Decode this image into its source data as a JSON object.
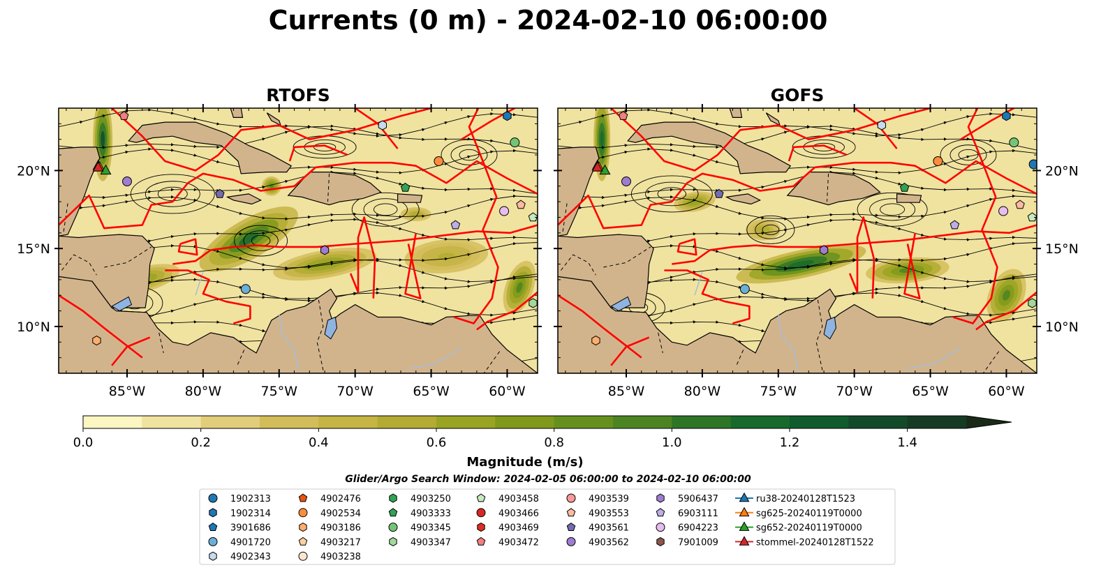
{
  "chart_data": {
    "type": "heatmap",
    "title": "Currents (0 m) - 2024-02-10 06:00:00",
    "panels": [
      {
        "name": "RTOFS"
      },
      {
        "name": "GOFS"
      }
    ],
    "x_axis": {
      "range": [
        -89.5,
        -58.0
      ],
      "ticks": [
        -85,
        -80,
        -75,
        -70,
        -65,
        -60
      ],
      "tick_labels": [
        "85°W",
        "80°W",
        "75°W",
        "70°W",
        "65°W",
        "60°W"
      ]
    },
    "y_axis": {
      "range": [
        7.0,
        24.0
      ],
      "ticks": [
        10,
        15,
        20
      ],
      "tick_labels": [
        "10°N",
        "15°N",
        "20°N"
      ]
    },
    "colorbar": {
      "label": "Magnitude (m/s)",
      "range": [
        0.0,
        1.5
      ],
      "extend": "max",
      "ticks": [
        0.0,
        0.2,
        0.4,
        0.6,
        0.8,
        1.0,
        1.2,
        1.4
      ],
      "tick_labels": [
        "0.0",
        "0.2",
        "0.4",
        "0.6",
        "0.8",
        "1.0",
        "1.2",
        "1.4"
      ],
      "colors": [
        "#fbf6c2",
        "#f0e3a0",
        "#e2cd7a",
        "#d3bd5a",
        "#c6b445",
        "#b3ab33",
        "#9aa423",
        "#80991a",
        "#66901d",
        "#4d8422",
        "#2f7528",
        "#176a2c",
        "#105c2d",
        "#134b2a",
        "#163b24",
        "#1a2a18"
      ]
    },
    "search_window": "Glider/Argo Search Window: 2024-02-05 06:00:00 to 2024-02-10 06:00:00",
    "land_color": "#d2b48c",
    "track_color": "#ff0000",
    "argo_floats": [
      {
        "id": "1902313",
        "marker": "circle",
        "color": "#1f77b4",
        "rtofs": [
          -60.0,
          24.3
        ],
        "gofs": [
          -58.2,
          20.4
        ]
      },
      {
        "id": "1902314",
        "marker": "hexagon",
        "color": "#1f77b4",
        "rtofs": [
          -60.0,
          23.5
        ],
        "gofs": [
          -60.0,
          23.5
        ]
      },
      {
        "id": "3901686",
        "marker": "pentagon",
        "color": "#1f77b4"
      },
      {
        "id": "4901720",
        "marker": "circle",
        "color": "#6baed6",
        "rtofs": [
          -77.2,
          12.4
        ],
        "gofs": [
          -77.2,
          12.4
        ]
      },
      {
        "id": "4902343",
        "marker": "hexagon",
        "color": "#c6dbef",
        "rtofs": [
          -68.2,
          22.9
        ],
        "gofs": [
          -68.2,
          22.9
        ]
      },
      {
        "id": "4902476",
        "marker": "pentagon",
        "color": "#e6550d"
      },
      {
        "id": "4902534",
        "marker": "circle",
        "color": "#fd8d3c",
        "rtofs": [
          -64.5,
          20.6
        ],
        "gofs": [
          -64.5,
          20.6
        ]
      },
      {
        "id": "4903186",
        "marker": "hexagon",
        "color": "#fdae6b",
        "rtofs": [
          -87.0,
          9.1
        ],
        "gofs": [
          -87.0,
          9.1
        ]
      },
      {
        "id": "4903217",
        "marker": "pentagon",
        "color": "#fdd0a2"
      },
      {
        "id": "4903238",
        "marker": "circle",
        "color": "#fee6ce"
      },
      {
        "id": "4903250",
        "marker": "hexagon",
        "color": "#31a354"
      },
      {
        "id": "4903333",
        "marker": "pentagon",
        "color": "#31a354",
        "rtofs": [
          -66.7,
          18.9
        ],
        "gofs": [
          -66.7,
          18.9
        ]
      },
      {
        "id": "4903345",
        "marker": "circle",
        "color": "#74c476",
        "rtofs": [
          -59.5,
          21.8
        ],
        "gofs": [
          -59.5,
          21.8
        ]
      },
      {
        "id": "4903347",
        "marker": "hexagon",
        "color": "#a1d99b",
        "rtofs": [
          -58.3,
          11.5
        ],
        "gofs": [
          -58.3,
          11.5
        ]
      },
      {
        "id": "4903458",
        "marker": "pentagon",
        "color": "#c7e9c0",
        "rtofs": [
          -58.3,
          17.0
        ],
        "gofs": [
          -58.3,
          17.0
        ]
      },
      {
        "id": "4903466",
        "marker": "circle",
        "color": "#d62728"
      },
      {
        "id": "4903469",
        "marker": "hexagon",
        "color": "#de2d26"
      },
      {
        "id": "4903472",
        "marker": "pentagon",
        "color": "#f08080",
        "rtofs": [
          -85.2,
          23.5
        ],
        "gofs": [
          -85.2,
          23.5
        ]
      },
      {
        "id": "4903539",
        "marker": "circle",
        "color": "#ff9896"
      },
      {
        "id": "4903553",
        "marker": "pentagon",
        "color": "#fcbba1",
        "rtofs": [
          -59.1,
          17.8
        ],
        "gofs": [
          -59.1,
          17.8
        ]
      },
      {
        "id": "4903561",
        "marker": "pentagon",
        "color": "#756bb1",
        "rtofs": [
          -78.9,
          18.5
        ],
        "gofs": [
          -78.9,
          18.5
        ]
      },
      {
        "id": "4903562",
        "marker": "circle",
        "color": "#9e7cd1",
        "rtofs": [
          -85.0,
          19.3
        ],
        "gofs": [
          -85.0,
          19.3
        ]
      },
      {
        "id": "5906437",
        "marker": "hexagon",
        "color": "#9e7cd1",
        "rtofs": [
          -72.0,
          14.9
        ],
        "gofs": [
          -72.0,
          14.9
        ]
      },
      {
        "id": "6903111",
        "marker": "pentagon",
        "color": "#bcaee6",
        "rtofs": [
          -63.4,
          16.5
        ],
        "gofs": [
          -63.4,
          16.5
        ]
      },
      {
        "id": "6904223",
        "marker": "circle",
        "color": "#e7bdf0",
        "rtofs": [
          -60.2,
          17.4
        ],
        "gofs": [
          -60.2,
          17.4
        ]
      },
      {
        "id": "7901009",
        "marker": "hexagon",
        "color": "#8c564b"
      }
    ],
    "gliders": [
      {
        "id": "ru38-20240128T1523",
        "color": "#1f77b4",
        "position": [
          -86.9,
          20.3
        ]
      },
      {
        "id": "sg625-20240119T0000",
        "color": "#ff7f0e",
        "position": [
          -86.8,
          20.2
        ]
      },
      {
        "id": "sg652-20240119T0000",
        "color": "#2ca02c",
        "position": [
          -86.4,
          20.0
        ]
      },
      {
        "id": "stommel-20240128T1522",
        "color": "#d62728",
        "position": [
          -86.9,
          20.2
        ]
      }
    ]
  }
}
